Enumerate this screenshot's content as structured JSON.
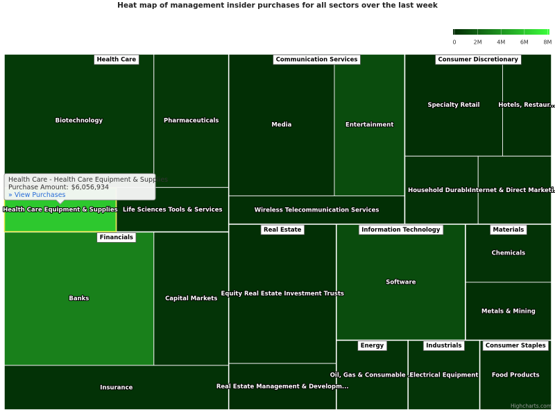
{
  "chart_data": {
    "type": "treemap",
    "title": "Heat map of management insider purchases for all sectors over the last week",
    "color_axis": {
      "min_color": "#012a04",
      "max_color": "#3cff3c",
      "lim": [
        0,
        8150000
      ],
      "ticks": [
        0,
        {
          "value": 2000000,
          "label": "2M"
        },
        {
          "value": 4000000,
          "label": "4M"
        },
        {
          "value": 6000000,
          "label": "6M"
        },
        {
          "value": 8000000,
          "label": "8M"
        }
      ]
    },
    "sectors": [
      {
        "name": "Health Care",
        "children": [
          {
            "name": "Biotechnology",
            "size": 4,
            "value": 600000
          },
          {
            "name": "Pharmaceuticals",
            "size": 2,
            "value": 500000
          },
          {
            "name": "Health Care Equipment & Supplies",
            "size": 1,
            "value": 6056934
          },
          {
            "name": "Life Sciences Tools & Services",
            "size": 1,
            "value": 300000
          }
        ]
      },
      {
        "name": "Financials",
        "children": [
          {
            "name": "Banks",
            "size": 4,
            "value": 3300000
          },
          {
            "name": "Capital Markets",
            "size": 2,
            "value": 400000
          },
          {
            "name": "Insurance",
            "size": 2,
            "value": 300000
          }
        ]
      },
      {
        "name": "Communication Services",
        "children": [
          {
            "name": "Media",
            "size": 3,
            "value": 200000
          },
          {
            "name": "Entertainment",
            "size": 2,
            "value": 1300000
          },
          {
            "name": "Wireless Telecommunication Services",
            "size": 1,
            "value": 200000
          }
        ]
      },
      {
        "name": "Consumer Discretionary",
        "children": [
          {
            "name": "Specialty Retail",
            "size": 2,
            "value": 200000
          },
          {
            "name": "Hotels, Restaur...",
            "size": 1,
            "value": 200000
          },
          {
            "name": "Household Durables",
            "size": 1,
            "value": 250000
          },
          {
            "name": "Internet & Direct Marketi...",
            "size": 1,
            "value": 300000
          }
        ]
      },
      {
        "name": "Real Estate",
        "children": [
          {
            "name": "Equity Real Estate Investment Trusts",
            "size": 3,
            "value": 200000
          },
          {
            "name": "Real Estate Management & Developm...",
            "size": 1,
            "value": 100000
          }
        ]
      },
      {
        "name": "Information Technology",
        "children": [
          {
            "name": "Software",
            "size": 3,
            "value": 1300000
          }
        ]
      },
      {
        "name": "Materials",
        "children": [
          {
            "name": "Chemicals",
            "size": 1,
            "value": 300000
          },
          {
            "name": "Metals & Mining",
            "size": 1,
            "value": 200000
          }
        ]
      },
      {
        "name": "Energy",
        "children": [
          {
            "name": "Oil, Gas & Consumable ...",
            "size": 1,
            "value": 300000
          }
        ]
      },
      {
        "name": "Industrials",
        "children": [
          {
            "name": "Electrical Equipment",
            "size": 1,
            "value": 400000
          }
        ]
      },
      {
        "name": "Consumer Staples",
        "children": [
          {
            "name": "Food Products",
            "size": 1,
            "value": 200000
          }
        ]
      }
    ],
    "tooltip": {
      "title": "Health Care - Health Care Equipment & Supplies",
      "label": "Purchase Amount:",
      "value_label": "$6,056,934",
      "link": "» View Purchases"
    },
    "credits": "Highcharts.com"
  }
}
